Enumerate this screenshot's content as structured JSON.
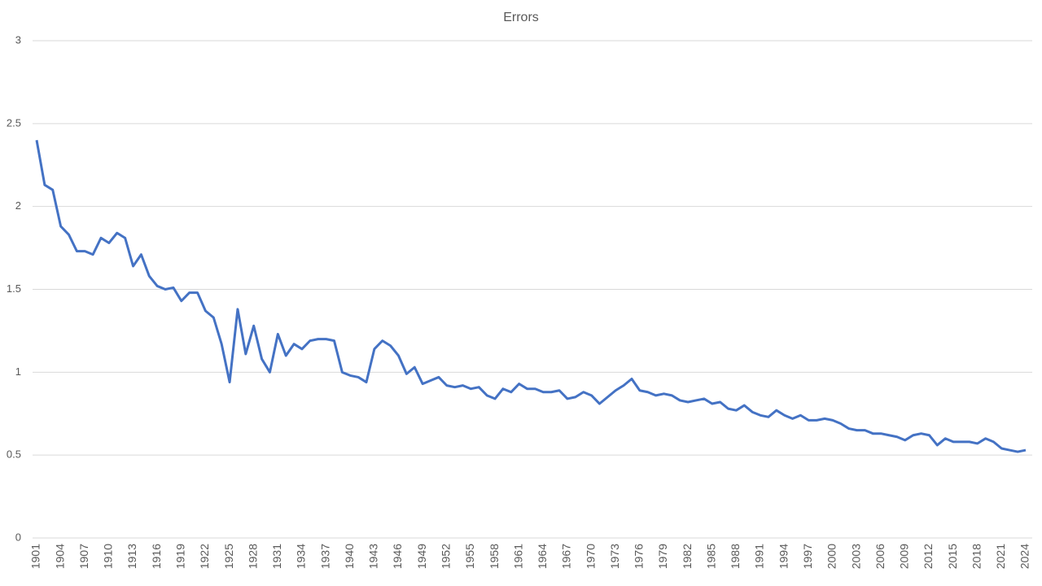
{
  "chart_data": {
    "type": "line",
    "title": "Errors",
    "x": [
      1901,
      1902,
      1903,
      1904,
      1905,
      1906,
      1907,
      1908,
      1909,
      1910,
      1911,
      1912,
      1913,
      1914,
      1915,
      1916,
      1917,
      1918,
      1919,
      1920,
      1921,
      1922,
      1923,
      1924,
      1925,
      1926,
      1927,
      1928,
      1929,
      1930,
      1931,
      1932,
      1933,
      1934,
      1935,
      1936,
      1937,
      1938,
      1939,
      1940,
      1941,
      1942,
      1943,
      1944,
      1945,
      1946,
      1947,
      1948,
      1949,
      1950,
      1951,
      1952,
      1953,
      1954,
      1955,
      1956,
      1957,
      1958,
      1959,
      1960,
      1961,
      1962,
      1963,
      1964,
      1965,
      1966,
      1967,
      1968,
      1969,
      1970,
      1971,
      1972,
      1973,
      1974,
      1975,
      1976,
      1977,
      1978,
      1979,
      1980,
      1981,
      1982,
      1983,
      1984,
      1985,
      1986,
      1987,
      1988,
      1989,
      1990,
      1991,
      1992,
      1993,
      1994,
      1995,
      1996,
      1997,
      1998,
      1999,
      2000,
      2001,
      2002,
      2003,
      2004,
      2005,
      2006,
      2007,
      2008,
      2009,
      2010,
      2011,
      2012,
      2013,
      2014,
      2015,
      2016,
      2017,
      2018,
      2019,
      2020,
      2021,
      2022,
      2023,
      2024
    ],
    "series": [
      {
        "name": "Errors",
        "color": "#4472c4",
        "values": [
          2.4,
          2.13,
          2.1,
          1.88,
          1.83,
          1.73,
          1.73,
          1.71,
          1.81,
          1.78,
          1.84,
          1.81,
          1.64,
          1.71,
          1.58,
          1.52,
          1.5,
          1.51,
          1.43,
          1.48,
          1.48,
          1.37,
          1.33,
          1.17,
          0.94,
          1.38,
          1.11,
          1.28,
          1.08,
          1.0,
          1.23,
          1.1,
          1.17,
          1.14,
          1.19,
          1.2,
          1.2,
          1.19,
          1.0,
          0.98,
          0.97,
          0.94,
          1.14,
          1.19,
          1.16,
          1.1,
          0.99,
          1.03,
          0.93,
          0.95,
          0.97,
          0.92,
          0.91,
          0.92,
          0.9,
          0.91,
          0.86,
          0.84,
          0.9,
          0.88,
          0.93,
          0.9,
          0.9,
          0.88,
          0.88,
          0.89,
          0.84,
          0.85,
          0.88,
          0.86,
          0.81,
          0.85,
          0.89,
          0.92,
          0.96,
          0.89,
          0.88,
          0.86,
          0.87,
          0.86,
          0.83,
          0.82,
          0.83,
          0.84,
          0.81,
          0.82,
          0.78,
          0.77,
          0.8,
          0.76,
          0.74,
          0.73,
          0.77,
          0.74,
          0.72,
          0.74,
          0.71,
          0.71,
          0.72,
          0.71,
          0.69,
          0.66,
          0.65,
          0.65,
          0.63,
          0.63,
          0.62,
          0.61,
          0.59,
          0.62,
          0.63,
          0.62,
          0.56,
          0.6,
          0.58,
          0.58,
          0.58,
          0.57,
          0.6,
          0.58,
          0.54,
          0.53,
          0.52,
          0.53
        ]
      }
    ],
    "xlim": [
      1901,
      2024
    ],
    "xticks": [
      1901,
      1904,
      1907,
      1910,
      1913,
      1916,
      1919,
      1922,
      1925,
      1928,
      1931,
      1934,
      1937,
      1940,
      1943,
      1946,
      1949,
      1952,
      1955,
      1958,
      1961,
      1964,
      1967,
      1970,
      1973,
      1976,
      1979,
      1982,
      1985,
      1988,
      1991,
      1994,
      1997,
      2000,
      2003,
      2006,
      2009,
      2012,
      2015,
      2018,
      2021,
      2024
    ],
    "ylim": [
      0,
      3
    ],
    "yticks": [
      0,
      0.5,
      1,
      1.5,
      2,
      2.5,
      3
    ],
    "grid": true
  }
}
